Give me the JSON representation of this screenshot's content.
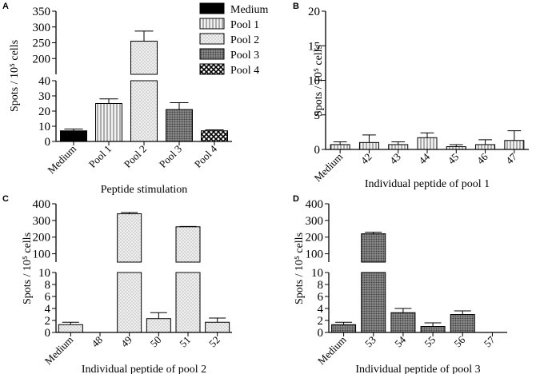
{
  "chart_data": [
    {
      "panel": "A",
      "type": "bar",
      "categories": [
        "Medium",
        "Pool 1",
        "Pool 2",
        "Pool 3",
        "Pool 4"
      ],
      "values": [
        7,
        25,
        255,
        21,
        7
      ],
      "errors": [
        1.2,
        3,
        32,
        4.5,
        0.6
      ],
      "fills": [
        "black",
        "vlines",
        "dots",
        "dense",
        "check"
      ],
      "xlabel": "Peptide stimulation",
      "ylabel": "Spots / 10⁵ cells",
      "axis_break": true,
      "lower_range": [
        0,
        40
      ],
      "lower_ticks": [
        0,
        10,
        20,
        30,
        40
      ],
      "upper_range": [
        150,
        350
      ],
      "upper_ticks": [
        200,
        250,
        300,
        350
      ],
      "legend": {
        "position": "top-right",
        "entries": [
          "Medium",
          "Pool 1",
          "Pool 2",
          "Pool 3",
          "Pool 4"
        ]
      }
    },
    {
      "panel": "B",
      "type": "bar",
      "categories": [
        "Medium",
        "42",
        "43",
        "44",
        "45",
        "46",
        "47"
      ],
      "values": [
        0.7,
        1.0,
        0.7,
        1.7,
        0.4,
        0.7,
        1.3
      ],
      "errors": [
        0.4,
        1.1,
        0.4,
        0.7,
        0.3,
        0.7,
        1.4
      ],
      "fill": "vlines",
      "xlabel": "Individual peptide of pool 1",
      "ylabel": "Spots / 10⁵ cells",
      "axis_break": false,
      "ylim": [
        0,
        20
      ],
      "yticks": [
        0,
        5,
        10,
        15,
        20
      ]
    },
    {
      "panel": "C",
      "type": "bar",
      "categories": [
        "Medium",
        "48",
        "49",
        "50",
        "51",
        "52"
      ],
      "values": [
        1.3,
        0,
        340,
        2.3,
        262,
        1.7
      ],
      "errors": [
        0.4,
        0,
        8,
        1.0,
        2,
        0.7
      ],
      "fill": "dots",
      "xlabel": "Individual peptide of pool 2",
      "ylabel": "Spots / 10⁵ cells",
      "axis_break": true,
      "lower_range": [
        0,
        10
      ],
      "lower_ticks": [
        0,
        2,
        4,
        6,
        8,
        10
      ],
      "upper_range": [
        50,
        400
      ],
      "upper_ticks": [
        100,
        200,
        300,
        400
      ]
    },
    {
      "panel": "D",
      "type": "bar",
      "categories": [
        "Medium",
        "53",
        "54",
        "55",
        "56",
        "57"
      ],
      "values": [
        1.3,
        220,
        3.3,
        1.0,
        3.0,
        0
      ],
      "errors": [
        0.4,
        10,
        0.7,
        0.6,
        0.6,
        0
      ],
      "fill": "dense",
      "xlabel": "Individual peptide of pool 3",
      "ylabel": "Spots / 10⁵ cells",
      "axis_break": true,
      "lower_range": [
        0,
        10
      ],
      "lower_ticks": [
        0,
        2,
        4,
        6,
        8,
        10
      ],
      "upper_range": [
        50,
        400
      ],
      "upper_ticks": [
        100,
        200,
        300,
        400
      ]
    }
  ]
}
